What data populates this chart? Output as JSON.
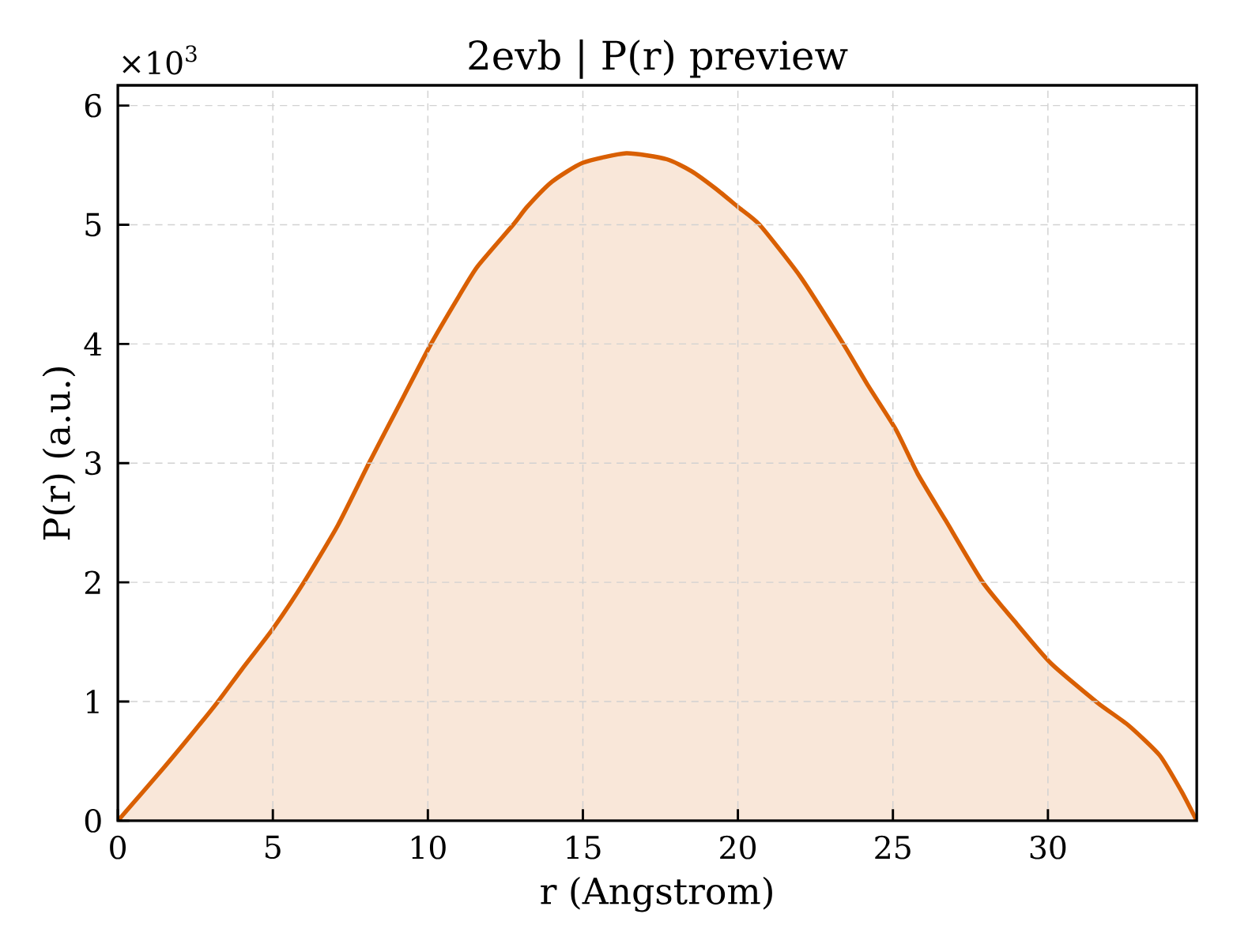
{
  "chart_data": {
    "type": "area",
    "title": "2evb | P(r) preview",
    "xlabel": "r (Angstrom)",
    "ylabel": "P(r) (a.u.)",
    "annotations": [
      "×10$^{3}$"
    ],
    "x": [
      0,
      1.5,
      2.3,
      3.2,
      4.0,
      5.0,
      6.0,
      7.1,
      8.1,
      9.1,
      10.1,
      11.0,
      11.6,
      12.75,
      13.2,
      14.0,
      15.0,
      16.4,
      17.7,
      18.5,
      19.3,
      20.0,
      20.7,
      22.0,
      23.4,
      24.2,
      25.1,
      25.8,
      26.7,
      27.9,
      29.0,
      30.1,
      31.6,
      32.6,
      33.6,
      34.3,
      34.8
    ],
    "values": [
      0,
      0.45,
      0.7,
      0.99,
      1.27,
      1.61,
      2.0,
      2.48,
      3.0,
      3.5,
      4.0,
      4.4,
      4.65,
      5.0,
      5.15,
      5.36,
      5.52,
      5.6,
      5.55,
      5.45,
      5.3,
      5.15,
      5.0,
      4.57,
      4.0,
      3.65,
      3.28,
      2.91,
      2.52,
      2.0,
      1.65,
      1.32,
      0.99,
      0.8,
      0.55,
      0.25,
      0
    ],
    "color": "#d95f02",
    "xlim": [
      0,
      34.8
    ],
    "ylim": [
      0,
      6.17
    ],
    "xticks": [
      0,
      5,
      10,
      15,
      20,
      25,
      30
    ],
    "yticks": [
      0,
      1,
      2,
      3,
      4,
      5,
      6
    ],
    "grid": true
  }
}
